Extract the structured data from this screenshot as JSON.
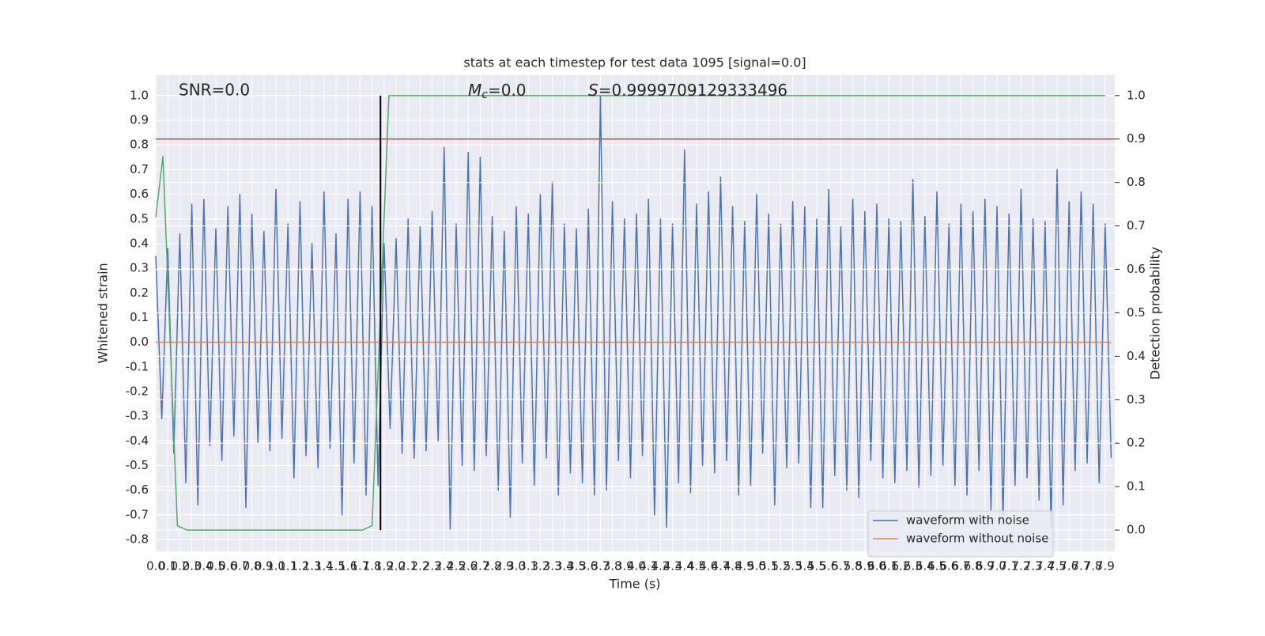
{
  "chart_data": {
    "type": "line",
    "title": "stats at each timestep for test data 1095 [signal=0.0]",
    "xlabel": "Time (s)",
    "ylabel": "Whitened strain",
    "y2label": "Detection probability",
    "annotations": [
      {
        "text": "SNR=0.0"
      },
      {
        "symbol": "M",
        "subscript": "c",
        "text": "=0.0"
      },
      {
        "symbol": "S",
        "text": "=0.9999709129333496"
      }
    ],
    "grid": true,
    "legend": "lower right",
    "xlim": [
      0,
      7.98
    ],
    "ylim": [
      -0.848,
      1.083
    ],
    "y2lim": [
      -0.049,
      1.047
    ],
    "xticks": [
      {
        "value": 0,
        "label": "0.0"
      },
      0.1,
      0.2,
      0.3,
      0.4,
      0.5,
      0.6,
      0.7,
      0.8,
      0.9,
      {
        "value": 1,
        "label": "1.0"
      },
      1.1,
      1.2,
      1.3,
      1.4,
      1.5,
      1.6,
      1.7,
      1.8,
      1.9,
      {
        "value": 2,
        "label": "2.0"
      },
      2.1,
      2.2,
      2.3,
      2.4,
      2.5,
      2.6,
      2.7,
      2.8,
      2.9,
      {
        "value": 3,
        "label": "3.0"
      },
      3.1,
      3.2,
      3.3,
      3.4,
      3.5,
      3.6,
      3.7,
      3.8,
      3.9,
      {
        "value": 4,
        "label": "4.0"
      },
      4.1,
      4.2,
      4.3,
      4.4,
      4.5,
      4.6,
      4.7,
      4.8,
      4.9,
      {
        "value": 5,
        "label": "5.0"
      },
      5.1,
      5.2,
      5.3,
      5.4,
      5.5,
      5.6,
      5.7,
      5.8,
      5.9,
      {
        "value": 6,
        "label": "6.0"
      },
      6.1,
      6.2,
      6.3,
      6.4,
      6.5,
      6.6,
      6.7,
      6.8,
      6.9,
      {
        "value": 7,
        "label": "7.0"
      },
      7.1,
      7.2,
      7.3,
      7.4,
      7.5,
      7.6,
      7.7,
      7.8,
      7.9
    ],
    "yticks": [
      {
        "value": 1,
        "label": "1.0"
      },
      0.9,
      0.8,
      0.7,
      0.6,
      0.5,
      0.4,
      0.3,
      0.2,
      0.1,
      {
        "value": 0,
        "label": "0.0"
      },
      -0.1,
      -0.2,
      -0.3,
      -0.4,
      -0.5,
      -0.6,
      -0.7,
      -0.8
    ],
    "y2ticks": [
      {
        "value": 1,
        "label": "1.0"
      },
      0.9,
      0.8,
      0.7,
      0.6,
      0.5,
      0.4,
      0.3,
      0.2,
      0.1,
      {
        "value": 0,
        "label": "0.0"
      }
    ],
    "series": [
      {
        "name": "waveform with noise",
        "color": "#4c72b0",
        "x": [
          0,
          0.05,
          0.1,
          0.15,
          0.2,
          0.25,
          0.3,
          0.35,
          0.4,
          0.45,
          0.5,
          0.55,
          0.6,
          0.65,
          0.7,
          0.75,
          0.8,
          0.85,
          0.9,
          0.95,
          1,
          1.05,
          1.1,
          1.15,
          1.2,
          1.25,
          1.3,
          1.35,
          1.4,
          1.45,
          1.5,
          1.55,
          1.6,
          1.65,
          1.7,
          1.75,
          1.8,
          1.85,
          1.9,
          1.95,
          2,
          2.05,
          2.1,
          2.15,
          2.2,
          2.25,
          2.3,
          2.35,
          2.4,
          2.45,
          2.5,
          2.55,
          2.6,
          2.65,
          2.7,
          2.75,
          2.8,
          2.85,
          2.9,
          2.95,
          3,
          3.05,
          3.1,
          3.15,
          3.2,
          3.25,
          3.3,
          3.35,
          3.4,
          3.45,
          3.5,
          3.55,
          3.6,
          3.65,
          3.7,
          3.75,
          3.8,
          3.85,
          3.9,
          3.95,
          4,
          4.05,
          4.1,
          4.15,
          4.2,
          4.25,
          4.3,
          4.35,
          4.4,
          4.45,
          4.5,
          4.55,
          4.6,
          4.65,
          4.7,
          4.75,
          4.8,
          4.85,
          4.9,
          4.95,
          5,
          5.05,
          5.1,
          5.15,
          5.2,
          5.25,
          5.3,
          5.35,
          5.4,
          5.45,
          5.5,
          5.55,
          5.6,
          5.65,
          5.7,
          5.75,
          5.8,
          5.85,
          5.9,
          5.95,
          6,
          6.05,
          6.1,
          6.15,
          6.2,
          6.25,
          6.3,
          6.35,
          6.4,
          6.45,
          6.5,
          6.55,
          6.6,
          6.65,
          6.7,
          6.75,
          6.8,
          6.85,
          6.9,
          6.95,
          7,
          7.05,
          7.1,
          7.15,
          7.2,
          7.25,
          7.3,
          7.35,
          7.4,
          7.45,
          7.5,
          7.55,
          7.6,
          7.65,
          7.7,
          7.75,
          7.8,
          7.85,
          7.9,
          7.95
        ],
        "values": [
          0.35,
          -0.31,
          0.38,
          -0.45,
          0.44,
          -0.57,
          0.56,
          -0.66,
          0.58,
          -0.42,
          0.46,
          -0.48,
          0.55,
          -0.38,
          0.6,
          -0.67,
          0.52,
          -0.41,
          0.45,
          -0.44,
          0.62,
          -0.39,
          0.48,
          -0.55,
          0.57,
          -0.46,
          0.4,
          -0.51,
          0.61,
          -0.43,
          0.44,
          -0.7,
          0.58,
          -0.49,
          0.61,
          -0.62,
          0.55,
          -0.58,
          0.4,
          -0.35,
          0.42,
          -0.45,
          0.5,
          -0.47,
          0.47,
          -0.44,
          0.53,
          -0.4,
          0.79,
          -0.76,
          0.48,
          -0.5,
          0.77,
          -0.52,
          0.75,
          -0.46,
          0.51,
          -0.6,
          0.45,
          -0.71,
          0.55,
          -0.49,
          0.52,
          -0.58,
          0.6,
          -0.47,
          0.65,
          -0.62,
          0.48,
          -0.53,
          0.46,
          -0.57,
          0.54,
          -0.62,
          1.0,
          -0.6,
          0.57,
          -0.48,
          0.5,
          -0.55,
          0.52,
          -0.46,
          0.58,
          -0.7,
          0.5,
          -0.75,
          0.48,
          -0.57,
          0.78,
          -0.61,
          0.56,
          -0.5,
          0.61,
          -0.53,
          0.67,
          -0.48,
          0.55,
          -0.62,
          0.49,
          -0.58,
          0.6,
          -0.45,
          0.52,
          -0.66,
          0.48,
          -0.51,
          0.57,
          -0.49,
          0.55,
          -0.67,
          0.5,
          -0.67,
          0.62,
          -0.54,
          0.47,
          -0.6,
          0.58,
          -0.63,
          0.53,
          -0.48,
          0.56,
          -0.55,
          0.5,
          -0.57,
          0.49,
          -0.52,
          0.66,
          -0.59,
          0.51,
          -0.54,
          0.61,
          -0.5,
          0.48,
          -0.58,
          0.56,
          -0.62,
          0.53,
          -0.52,
          0.58,
          -0.68,
          0.55,
          -0.72,
          0.52,
          -0.58,
          0.62,
          -0.55,
          0.5,
          -0.64,
          0.49,
          -0.75,
          0.7,
          -0.66,
          0.57,
          -0.52,
          0.61,
          -0.49,
          0.56,
          -0.57,
          0.48,
          -0.47
        ]
      },
      {
        "name": "waveform without noise",
        "color": "#dd8452",
        "x": [
          0,
          7.95
        ],
        "values": [
          0,
          0
        ]
      },
      {
        "color": "#55a868",
        "axis": "y2",
        "x": [
          0,
          0.06,
          0.18,
          0.26,
          1.72,
          1.8,
          1.94,
          7.9
        ],
        "values": [
          0.72,
          0.86,
          0.01,
          0,
          0,
          0.01,
          1,
          1
        ]
      }
    ],
    "hlines": [
      {
        "value": 0.9,
        "axis": "y2",
        "color": "#c44e52"
      }
    ],
    "vlines": [
      {
        "value": 1.87,
        "axis": "y2",
        "ymin": 0,
        "ymax": 1,
        "color": "#000000"
      }
    ]
  }
}
